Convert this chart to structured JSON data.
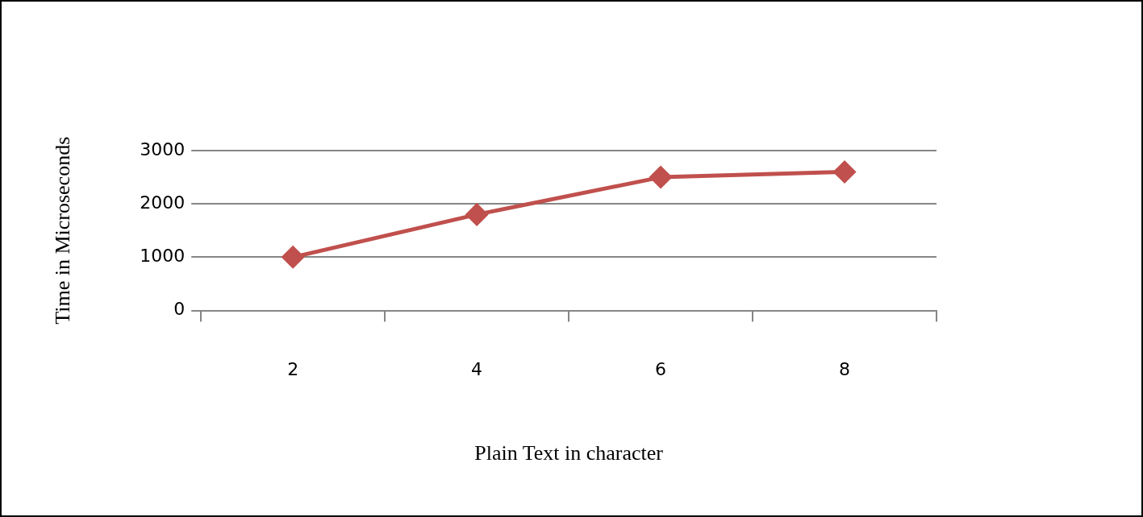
{
  "chart_data": {
    "type": "line",
    "xlabel": "Plain Text in character",
    "ylabel": "Time in Microseconds",
    "categories": [
      "2",
      "4",
      "6",
      "8"
    ],
    "series": [
      {
        "color": "#c0504d",
        "values": [
          1000,
          1800,
          2500,
          2600
        ]
      }
    ],
    "ylim": [
      0,
      3000
    ],
    "yticks": [
      0,
      1000,
      2000,
      3000
    ],
    "grid": "y",
    "marker": "diamond",
    "line_style": "solid",
    "legend": false
  }
}
